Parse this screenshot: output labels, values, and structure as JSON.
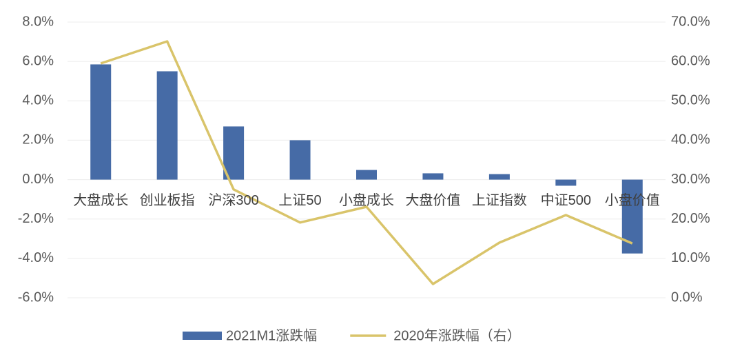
{
  "chart_data": {
    "type": "bar",
    "categories": [
      "大盘成长",
      "创业板指",
      "沪深300",
      "上证50",
      "小盘成长",
      "大盘价值",
      "上证指数",
      "中证500",
      "小盘价值"
    ],
    "series": [
      {
        "name": "2021M1涨跌幅",
        "type": "bar",
        "color": "#466ba6",
        "values": [
          5.85,
          5.5,
          2.7,
          2.0,
          0.49,
          0.32,
          0.28,
          -0.31,
          -3.75
        ]
      },
      {
        "name": "2020年涨跌幅（右）",
        "type": "line",
        "axis": "y2",
        "color": "#d9c46a",
        "values": [
          59.5,
          65.1,
          27.5,
          19.1,
          23.1,
          3.5,
          14.0,
          21.0,
          13.8
        ]
      }
    ],
    "ylim": [
      -6,
      8
    ],
    "yticks": [
      {
        "value": -6,
        "label": "-6.0%"
      },
      {
        "value": -4,
        "label": "-4.0%"
      },
      {
        "value": -2,
        "label": "-2.0%"
      },
      {
        "value": 0,
        "label": "0.0%"
      },
      {
        "value": 2,
        "label": "2.0%"
      },
      {
        "value": 4,
        "label": "4.0%"
      },
      {
        "value": 6,
        "label": "6.0%"
      },
      {
        "value": 8,
        "label": "8.0%"
      }
    ],
    "y2lim": [
      0,
      70
    ],
    "y2ticks": [
      {
        "value": 0,
        "label": "0.0%"
      },
      {
        "value": 10,
        "label": "10.0%"
      },
      {
        "value": 20,
        "label": "20.0%"
      },
      {
        "value": 30,
        "label": "30.0%"
      },
      {
        "value": 40,
        "label": "40.0%"
      },
      {
        "value": 50,
        "label": "50.0%"
      },
      {
        "value": 60,
        "label": "60.0%"
      },
      {
        "value": 70,
        "label": "70.0%"
      }
    ],
    "grid": true,
    "legend": "bottom"
  }
}
